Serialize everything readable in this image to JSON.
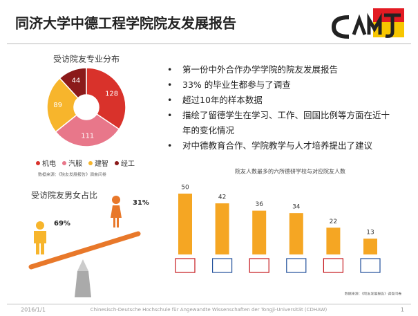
{
  "header": {
    "title": "同济大学中德工程学院院友发展报告"
  },
  "bullets": [
    "第一份中外合作办学学院的院友发展报告",
    "33% 的毕业生都参与了调查",
    "超过10年的样本数据",
    "描绘了留德学生在学习、工作、回国比例等方面在近十年的变化情况",
    "对中德教育合作、学院教学与人才培养提出了建议"
  ],
  "chart_data": [
    {
      "type": "pie",
      "title": "受访院友专业分布",
      "categories": [
        "机电",
        "汽服",
        "建智",
        "经工"
      ],
      "values": [
        128,
        111,
        89,
        44
      ],
      "colors": [
        "#d9322b",
        "#e8778a",
        "#f7b52c",
        "#8b1a1a"
      ],
      "source": "数据来源：《院友发展报告》调查问卷"
    },
    {
      "type": "bar",
      "title": "院友人数最多的六所德研学校与对应院友人数",
      "categories": [
        null,
        null,
        null,
        null,
        null,
        null
      ],
      "values": [
        50,
        42,
        36,
        34,
        22,
        13
      ],
      "color": "#f5a623",
      "source": "数据来源：《院友发展报告》调查问卷"
    },
    {
      "type": "pictogram",
      "title": "受访院友男女占比",
      "values": [
        69,
        31
      ],
      "value_labels": [
        "69%",
        "31%"
      ],
      "colors": [
        "#f7b52c",
        "#e8782a"
      ]
    }
  ],
  "footer": {
    "date": "2016/1/1",
    "text": "Chinesisch-Deutsche Hochschule für Angewandte Wissenschaften der Tongji-Universität (CDHAW)",
    "page": "1"
  }
}
